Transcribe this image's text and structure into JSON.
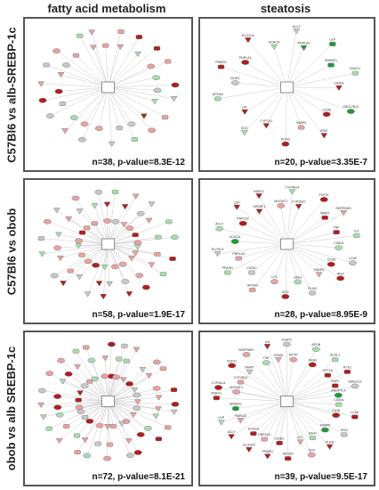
{
  "columns": [
    "fatty acid metabolism",
    "steatosis"
  ],
  "rows": [
    "C57Bl6 vs alb-SREBP-1c",
    "C57Bl6 vs obob",
    "obob vs alb SREBP-1c"
  ],
  "panels": [
    {
      "stat": "n=38, p-value=8.3E-12",
      "node_count": 38,
      "labels": []
    },
    {
      "stat": "n=20, p-value=3.35E-7",
      "node_count": 20,
      "labels": [
        "CIDEA",
        "HSD17B13",
        "CD36",
        "IRS2",
        "FABP5",
        "PLIN2",
        "CYP7A1",
        "SCD",
        "LPL",
        "APOA4",
        "CIDEC",
        "PPARG",
        "PNPLA3",
        "ELOVL6",
        "ACACA",
        "ACLY",
        "PNPLA2",
        "LEP",
        "SREBF1",
        "INSIG1"
      ]
    },
    {
      "stat": "n=58, p-value=1.9E-17",
      "node_count": 58,
      "labels": []
    },
    {
      "stat": "n=28, p-value=8.95E-9",
      "node_count": 28,
      "labels": [
        "CIDEA",
        "LCN2",
        "CD36",
        "IRS2",
        "FABP5",
        "PLIN2",
        "SAA1",
        "SCD",
        "LPL",
        "APOA4",
        "CIDEC",
        "PPARG",
        "PNPLA3",
        "ELOVL6",
        "ACACA",
        "ACLY",
        "PNPLA2",
        "LEP",
        "SREBF1",
        "INSIG1",
        "MOGAT1",
        "CYP4A14",
        "CYP2B10",
        "FGF21",
        "NNMT",
        "SERPINE1",
        "TNF",
        "IL6"
      ]
    },
    {
      "stat": "n=72, p-value=8.1E-21",
      "node_count": 72,
      "labels": []
    },
    {
      "stat": "n=39, p-value=9.5E-17",
      "node_count": 39,
      "labels": [
        "CIDEA",
        "LCN2",
        "CD36",
        "IRS2",
        "FABP5",
        "PLIN2",
        "SAA1",
        "SCD",
        "LPL",
        "APOA4",
        "CIDEC",
        "PPARG",
        "PNPLA3",
        "ELOVL6",
        "ACACA",
        "ACLY",
        "PNPLA2",
        "LEP",
        "SREBF1",
        "INSIG1",
        "MOGAT1",
        "CYP4A14",
        "CYP2B10",
        "FGF21",
        "NNMT",
        "SERPINE1",
        "TNF",
        "IL6",
        "GPAM",
        "DGAT2",
        "MTTP",
        "APOB",
        "FASN",
        "ACSL1",
        "CPT1A",
        "PCK1",
        "G6PC",
        "HMGCS2",
        "ANGPTL4"
      ]
    }
  ],
  "colors": {
    "up_strong": "#b01e1e",
    "up_light": "#e9a3a3",
    "down_strong": "#1f9a3a",
    "down_light": "#a9dcae",
    "neutral": "#c8c8c8",
    "edge": "#bdbdbd",
    "hub": "#ffffff"
  }
}
